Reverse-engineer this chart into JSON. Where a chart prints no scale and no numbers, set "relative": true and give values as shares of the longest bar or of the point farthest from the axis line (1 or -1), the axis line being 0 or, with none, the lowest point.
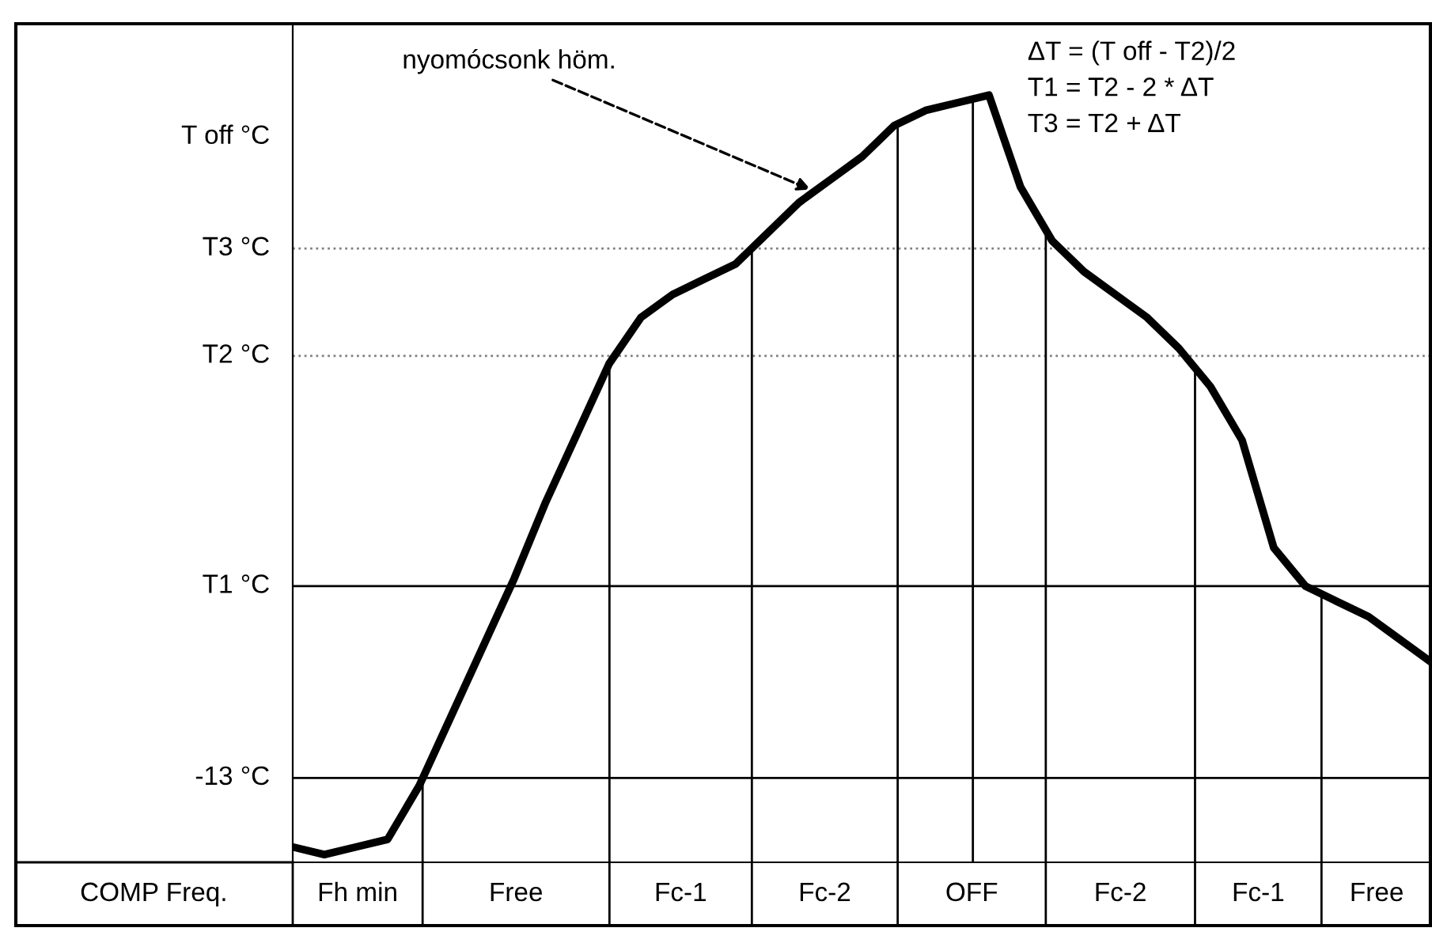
{
  "chart_data": {
    "type": "line",
    "relative": true,
    "xlabel": "COMP Freq.",
    "marker": "none",
    "line_style": "solid",
    "categories": [
      null,
      null,
      null,
      null,
      null,
      null,
      null,
      null,
      null,
      null,
      null,
      null,
      null,
      null,
      null,
      null,
      null,
      null,
      null,
      null,
      null,
      null,
      null,
      null,
      null,
      null,
      null,
      null,
      null,
      null,
      null,
      null,
      null,
      null,
      null,
      null,
      null
    ],
    "series": [
      {
        "color": "#000000",
        "values": [
          0.02,
          0.01,
          0.02,
          0.03,
          0.1,
          0.19,
          0.28,
          0.37,
          0.47,
          0.56,
          0.65,
          0.71,
          0.74,
          0.76,
          0.78,
          0.82,
          0.86,
          0.89,
          0.92,
          0.96,
          0.98,
          0.99,
          1,
          0.88,
          0.81,
          0.77,
          0.74,
          0.71,
          0.67,
          0.62,
          0.55,
          0.41,
          0.36,
          0.34,
          0.32,
          0.29,
          0.26
        ]
      }
    ],
    "ref_lines": [
      {
        "axis": "y",
        "value": 0.8,
        "label": "T3 °C",
        "line_style": "dotted",
        "color": "#808080"
      },
      {
        "axis": "y",
        "value": 0.66,
        "label": "T2 °C",
        "line_style": "dotted",
        "color": "#808080"
      },
      {
        "axis": "y",
        "value": 0.36,
        "label": "T1 °C",
        "line_style": "solid",
        "color": "#000000"
      },
      {
        "axis": "y",
        "value": 0.11,
        "label": "-13 °C",
        "line_style": "solid",
        "color": "#000000"
      }
    ],
    "annotations": [
      "T off °C",
      "nyomócsonk höm.",
      "ΔT = (T off - T2)/2",
      "T1 = T2 - 2 * ΔT",
      "T3 = T2 + ΔT",
      "Fh min",
      "Free",
      "Fc-1",
      "Fc-2",
      "OFF",
      "Fc-2",
      "Fc-1",
      "Free"
    ]
  }
}
